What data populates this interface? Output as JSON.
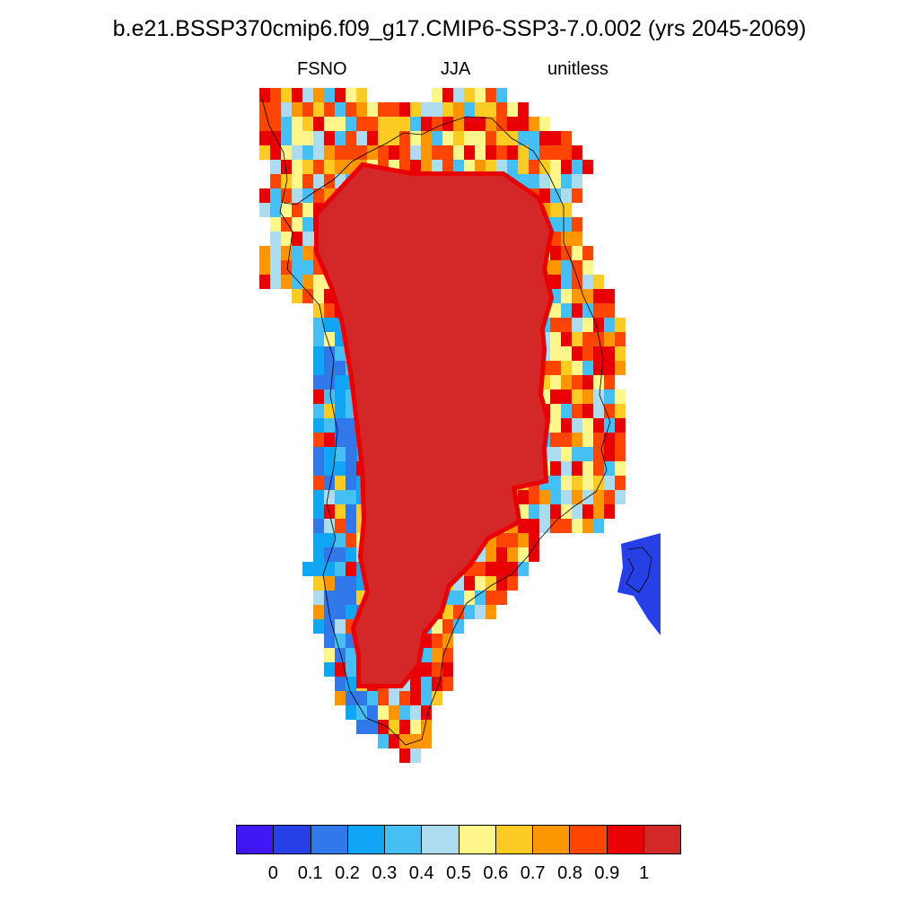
{
  "title": "b.e21.BSSP370cmip6.f09_g17.CMIP6-SSP3-7.0.002 (yrs 2045-2069)",
  "subtitle": {
    "variable": "FSNO",
    "season": "JJA",
    "units": "unitless"
  },
  "colorbar": {
    "colors": [
      "#4016f2",
      "#2640e6",
      "#3179ea",
      "#11a6f5",
      "#46c0f4",
      "#aedcef",
      "#fff68c",
      "#fecb25",
      "#fe9601",
      "#fe4503",
      "#e90005",
      "#d42828"
    ],
    "labels": [
      "0",
      "0.1",
      "0.2",
      "0.3",
      "0.4",
      "0.5",
      "0.6",
      "0.7",
      "0.8",
      "0.9",
      "1"
    ]
  },
  "map": {
    "region": "Greenland",
    "interior_value": 1.0,
    "coast_values": "0 to 1, mostly 0.1-0.4 on the southwest coast, 0.5-0.9 elsewhere"
  }
}
